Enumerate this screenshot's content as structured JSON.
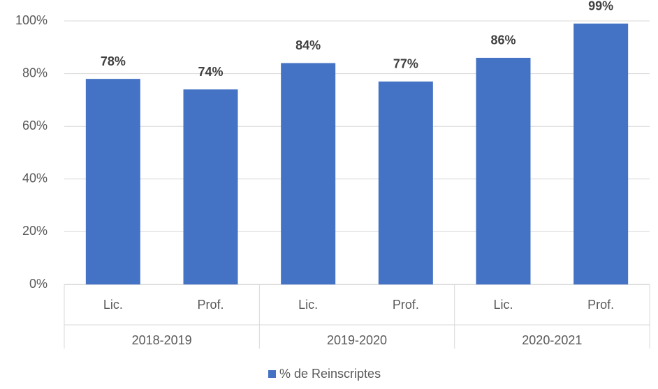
{
  "chart_data": {
    "type": "bar",
    "categories": [
      "Lic.",
      "Prof.",
      "Lic.",
      "Prof.",
      "Lic.",
      "Prof."
    ],
    "groups": [
      "2018-2019",
      "2019-2020",
      "2020-2021"
    ],
    "series": [
      {
        "name": "% de Reinscriptes",
        "color": "#4472c4",
        "values": [
          78,
          74,
          84,
          77,
          86,
          99
        ],
        "value_labels": [
          "78%",
          "74%",
          "84%",
          "77%",
          "86%",
          "99%"
        ]
      }
    ],
    "ylim": [
      0,
      100
    ],
    "yticks": [
      {
        "value": 0,
        "label": "0%"
      },
      {
        "value": 20,
        "label": "20%"
      },
      {
        "value": 40,
        "label": "40%"
      },
      {
        "value": 60,
        "label": "60%"
      },
      {
        "value": 80,
        "label": "80%"
      },
      {
        "value": 100,
        "label": "100%"
      }
    ],
    "grid": true,
    "legend": "bottom"
  }
}
